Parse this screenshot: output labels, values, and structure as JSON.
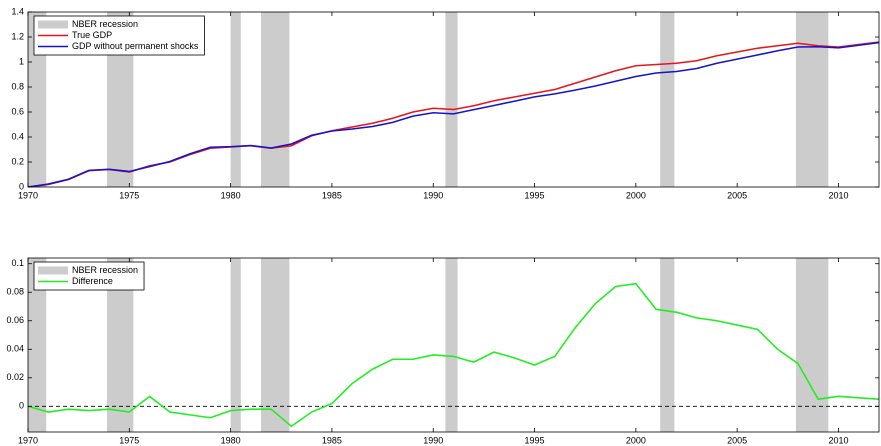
{
  "chart_data": [
    {
      "type": "line",
      "x": [
        1970,
        1971,
        1972,
        1973,
        1974,
        1975,
        1976,
        1977,
        1978,
        1979,
        1980,
        1981,
        1982,
        1983,
        1984,
        1985,
        1986,
        1987,
        1988,
        1989,
        1990,
        1991,
        1992,
        1993,
        1994,
        1995,
        1996,
        1997,
        1998,
        1999,
        2000,
        2001,
        2002,
        2003,
        2004,
        2005,
        2006,
        2007,
        2008,
        2009,
        2010,
        2011,
        2012
      ],
      "series": [
        {
          "name": "True GDP",
          "color": "#e8141c",
          "values": [
            0,
            0.02,
            0.06,
            0.13,
            0.14,
            0.12,
            0.17,
            0.2,
            0.26,
            0.31,
            0.32,
            0.33,
            0.31,
            0.33,
            0.41,
            0.45,
            0.48,
            0.51,
            0.55,
            0.6,
            0.63,
            0.62,
            0.65,
            0.69,
            0.72,
            0.75,
            0.78,
            0.83,
            0.88,
            0.93,
            0.97,
            0.98,
            0.99,
            1.01,
            1.05,
            1.08,
            1.11,
            1.13,
            1.15,
            1.13,
            1.12,
            1.14,
            1.16
          ]
        },
        {
          "name": "GDP without permanent shocks",
          "color": "#1414cc",
          "values": [
            0,
            0.024,
            0.062,
            0.133,
            0.142,
            0.124,
            0.163,
            0.204,
            0.266,
            0.318,
            0.323,
            0.332,
            0.312,
            0.344,
            0.414,
            0.448,
            0.464,
            0.484,
            0.517,
            0.567,
            0.594,
            0.585,
            0.619,
            0.652,
            0.686,
            0.721,
            0.745,
            0.775,
            0.808,
            0.846,
            0.884,
            0.912,
            0.924,
            0.948,
            0.99,
            1.023,
            1.056,
            1.09,
            1.12,
            1.122,
            1.113,
            1.134,
            1.155
          ]
        }
      ],
      "shading": {
        "name": "NBER recession",
        "color": "#cccccc",
        "spans": [
          [
            1970,
            1970.9
          ],
          [
            1973.9,
            1975.2
          ],
          [
            1980,
            1980.5
          ],
          [
            1981.5,
            1982.9
          ],
          [
            1990.6,
            1991.2
          ],
          [
            2001.2,
            2001.9
          ],
          [
            2007.9,
            2009.5
          ]
        ]
      },
      "xlim": [
        1970,
        2012
      ],
      "xticks": [
        1970,
        1975,
        1980,
        1985,
        1990,
        1995,
        2000,
        2005,
        2010
      ],
      "ylim": [
        0,
        1.4
      ],
      "yticks": [
        0,
        0.2,
        0.4,
        0.6,
        0.8,
        1,
        1.2,
        1.4
      ],
      "legend": "upper left"
    },
    {
      "type": "line",
      "x": [
        1970,
        1971,
        1972,
        1973,
        1974,
        1975,
        1976,
        1977,
        1978,
        1979,
        1980,
        1981,
        1982,
        1983,
        1984,
        1985,
        1986,
        1987,
        1988,
        1989,
        1990,
        1991,
        1992,
        1993,
        1994,
        1995,
        1996,
        1997,
        1998,
        1999,
        2000,
        2001,
        2002,
        2003,
        2004,
        2005,
        2006,
        2007,
        2008,
        2009,
        2010,
        2011,
        2012
      ],
      "series": [
        {
          "name": "Difference",
          "color": "#22ee22",
          "values": [
            0,
            -0.004,
            -0.002,
            -0.003,
            -0.002,
            -0.004,
            0.007,
            -0.004,
            -0.006,
            -0.008,
            -0.003,
            -0.002,
            -0.002,
            -0.014,
            -0.004,
            0.002,
            0.016,
            0.026,
            0.033,
            0.033,
            0.036,
            0.035,
            0.031,
            0.038,
            0.034,
            0.029,
            0.035,
            0.055,
            0.072,
            0.084,
            0.086,
            0.068,
            0.066,
            0.062,
            0.06,
            0.057,
            0.054,
            0.04,
            0.03,
            0.005,
            0.007,
            0.006,
            0.005
          ]
        }
      ],
      "shading": {
        "name": "NBER recession",
        "color": "#cccccc",
        "spans": [
          [
            1970,
            1970.9
          ],
          [
            1973.9,
            1975.2
          ],
          [
            1980,
            1980.5
          ],
          [
            1981.5,
            1982.9
          ],
          [
            1990.6,
            1991.2
          ],
          [
            2001.2,
            2001.9
          ],
          [
            2007.9,
            2009.5
          ]
        ]
      },
      "reference_line": 0,
      "xlim": [
        1970,
        2012
      ],
      "xticks": [
        1970,
        1975,
        1980,
        1985,
        1990,
        1995,
        2000,
        2005,
        2010
      ],
      "ylim": [
        -0.018,
        0.104
      ],
      "yticks": [
        0,
        0.02,
        0.04,
        0.06,
        0.08,
        0.1
      ],
      "legend": "upper left"
    }
  ]
}
